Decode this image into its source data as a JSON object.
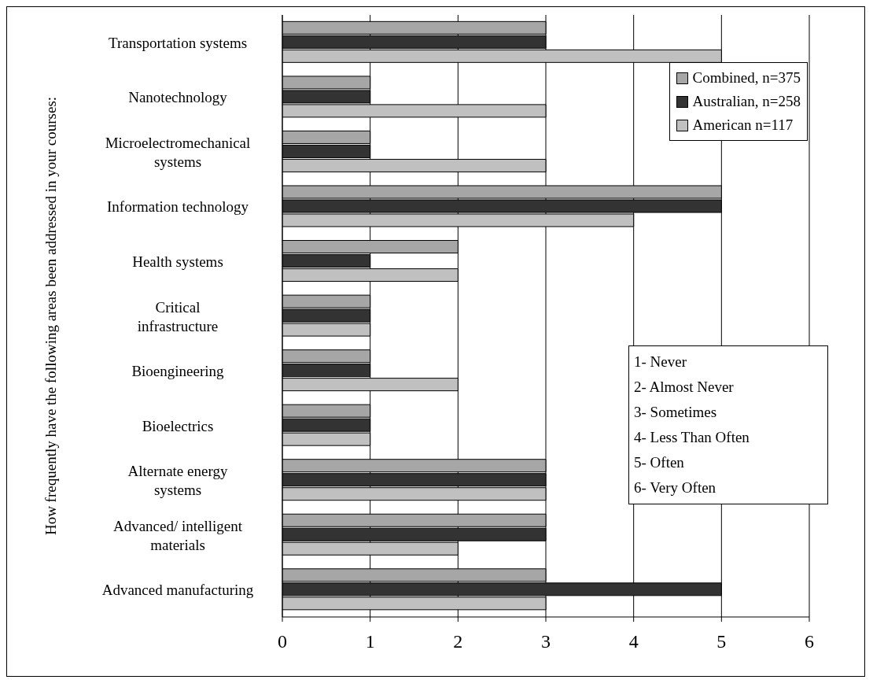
{
  "chart_data": {
    "type": "bar",
    "orientation": "horizontal",
    "ylabel": "How frequently have the following areas been addressed in your courses:",
    "categories": [
      "Transportation systems",
      "Nanotechnology",
      "Microelectromechanical systems",
      "Information technology",
      "Health systems",
      "Critical infrastructure",
      "Bioengineering",
      "Bioelectrics",
      "Alternate energy systems",
      "Advanced/ intelligent materials",
      "Advanced manufacturing"
    ],
    "series": [
      {
        "name": "Combined, n=375",
        "color": "#a6a6a6",
        "values": [
          3,
          1,
          1,
          5,
          2,
          1,
          1,
          1,
          3,
          3,
          3
        ]
      },
      {
        "name": "Australian, n=258",
        "color": "#333333",
        "values": [
          3,
          1,
          1,
          5,
          1,
          1,
          1,
          1,
          3,
          3,
          5
        ]
      },
      {
        "name": "American n=117",
        "color": "#c0c0c0",
        "values": [
          5,
          3,
          3,
          4,
          2,
          1,
          2,
          1,
          3,
          2,
          3
        ]
      }
    ],
    "xlim": [
      0,
      6
    ],
    "xticks": [
      0,
      1,
      2,
      3,
      4,
      5,
      6
    ],
    "grid": "x",
    "legend": "top right",
    "annotations": [
      "1- Never",
      "2- Almost Never",
      "3- Sometimes",
      "4- Less Than Often",
      "5- Often",
      "6- Very Often"
    ]
  }
}
